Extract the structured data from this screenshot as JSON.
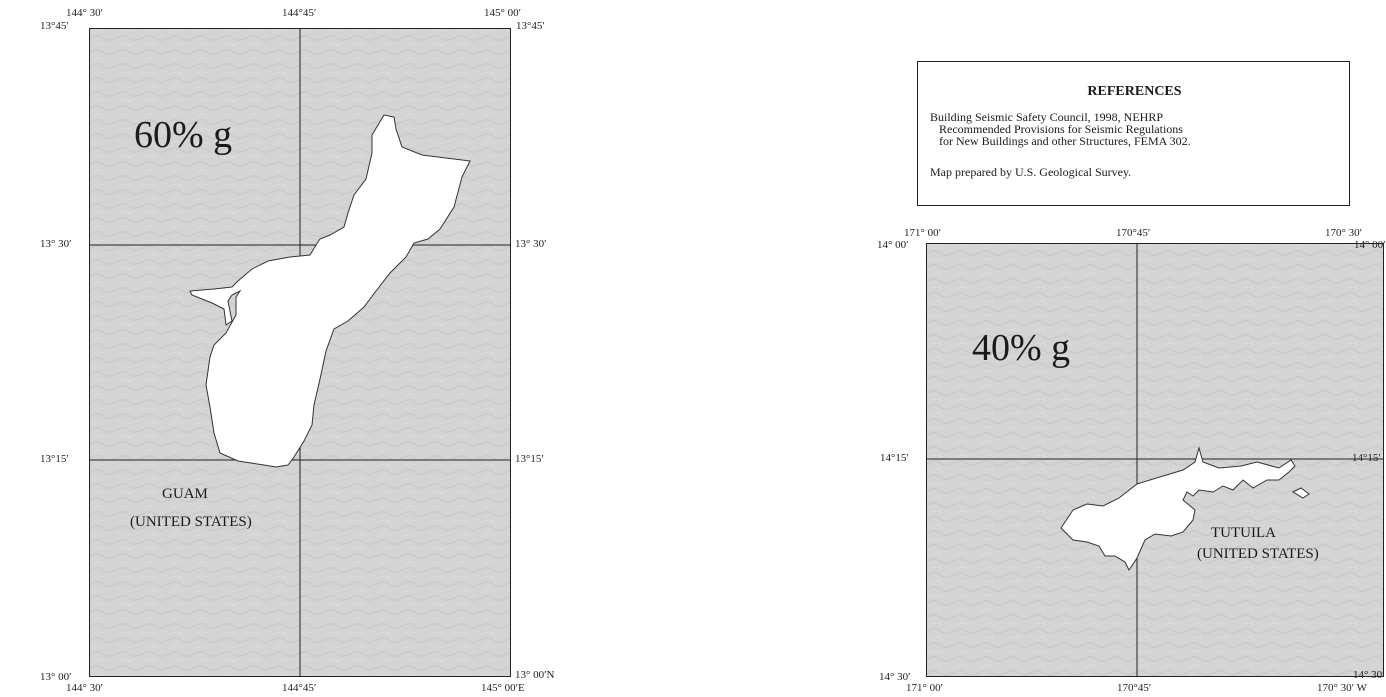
{
  "guam_map": {
    "labels": {
      "top_lon_left": "144° 30′",
      "top_lon_mid": "144°45′",
      "top_lon_right": "145° 00′",
      "lat_top_left": "13°45′",
      "lat_top_right": "13°45′",
      "lat_mid_left": "13° 30′",
      "lat_mid_right": "13° 30′",
      "lat_low_left": "13°15′",
      "lat_low_right": "13°15′",
      "lat_bottom_left": "13° 00′",
      "lat_bottom_right": "13° 00′N",
      "bottom_lon_left": "144° 30′",
      "bottom_lon_mid": "144°45′",
      "bottom_lon_right": "145° 00′E"
    },
    "hazard_value": "60% g",
    "place_name": "GUAM",
    "place_country": "(UNITED STATES)"
  },
  "references": {
    "title": "REFERENCES",
    "line1": "Building Seismic Safety Council, 1998, NEHRP",
    "line2": "Recommended Provisions for Seismic Regulations",
    "line3": "for New Buildings and other Structures, FEMA 302.",
    "line4": "Map prepared by U.S. Geological Survey."
  },
  "tutuila_map": {
    "labels": {
      "top_lon_left": "171° 00′",
      "top_lon_mid": "170°45′",
      "top_lon_right": "170° 30′",
      "lat_top_left": "14° 00′",
      "lat_top_right": "14° 00′",
      "lat_mid_left": "14°15′",
      "lat_mid_right": "14°15′",
      "lat_bottom_left": "14° 30′",
      "lat_bottom_right": "14° 30′",
      "bottom_lon_left": "171° 00′",
      "bottom_lon_mid": "170°45′",
      "bottom_lon_right": "170° 30′ W"
    },
    "hazard_value": "40% g",
    "place_name": "TUTUILA",
    "place_country": "(UNITED STATES)"
  }
}
